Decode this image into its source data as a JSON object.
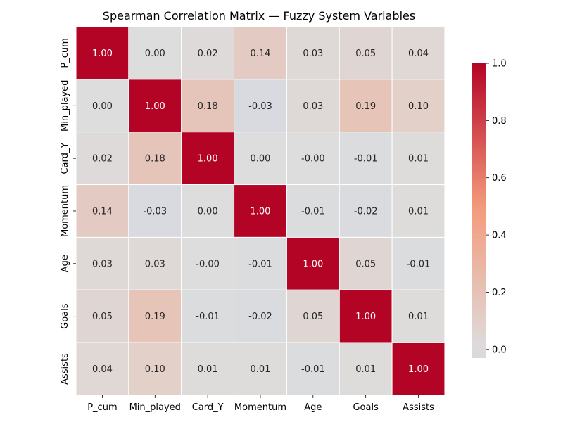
{
  "chart_data": {
    "type": "heatmap",
    "title": "Spearman Correlation Matrix — Fuzzy System Variables",
    "labels": [
      "P_cum",
      "Min_played",
      "Card_Y",
      "Momentum",
      "Age",
      "Goals",
      "Assists"
    ],
    "values": [
      [
        1.0,
        0.0,
        0.02,
        0.14,
        0.03,
        0.05,
        0.04
      ],
      [
        0.0,
        1.0,
        0.18,
        -0.03,
        0.03,
        0.19,
        0.1
      ],
      [
        0.02,
        0.18,
        1.0,
        0.0,
        -0.0,
        -0.01,
        0.01
      ],
      [
        0.14,
        -0.03,
        0.0,
        1.0,
        -0.01,
        -0.02,
        0.01
      ],
      [
        0.03,
        0.03,
        -0.0,
        -0.01,
        1.0,
        0.05,
        -0.01
      ],
      [
        0.05,
        0.19,
        -0.01,
        -0.02,
        0.05,
        1.0,
        0.01
      ],
      [
        0.04,
        0.1,
        0.01,
        0.01,
        -0.01,
        0.01,
        1.0
      ]
    ],
    "cell_labels": [
      [
        "1.00",
        "0.00",
        "0.02",
        "0.14",
        "0.03",
        "0.05",
        "0.04"
      ],
      [
        "0.00",
        "1.00",
        "0.18",
        "-0.03",
        "0.03",
        "0.19",
        "0.10"
      ],
      [
        "0.02",
        "0.18",
        "1.00",
        "0.00",
        "-0.00",
        "-0.01",
        "0.01"
      ],
      [
        "0.14",
        "-0.03",
        "0.00",
        "1.00",
        "-0.01",
        "-0.02",
        "0.01"
      ],
      [
        "0.03",
        "0.03",
        "-0.00",
        "-0.01",
        "1.00",
        "0.05",
        "-0.01"
      ],
      [
        "0.05",
        "0.19",
        "-0.01",
        "-0.02",
        "0.05",
        "1.00",
        "0.01"
      ],
      [
        "0.04",
        "0.10",
        "0.01",
        "0.01",
        "-0.01",
        "0.01",
        "1.00"
      ]
    ],
    "colorscale": "coolwarm",
    "center": 0,
    "vmin": -0.03,
    "vmax": 1.0,
    "colorbar_ticks": [
      "0.0",
      "0.2",
      "0.4",
      "0.6",
      "0.8",
      "1.0"
    ],
    "grid_lines": "white",
    "colors": {
      "positive": "#b40426",
      "neutral": "#dddddd",
      "negative": "#3b4cc0"
    }
  }
}
